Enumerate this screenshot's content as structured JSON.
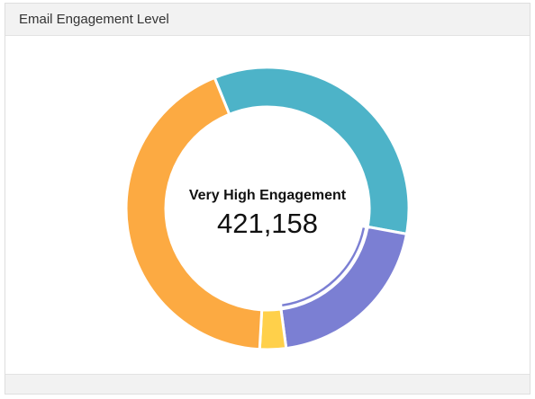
{
  "panel": {
    "title": "Email Engagement Level"
  },
  "chart_data": {
    "type": "pie",
    "title": "Email Engagement Level",
    "center_label": "Very High Engagement",
    "center_value": "421,158",
    "series": [
      {
        "value": 34,
        "color": "#4db3c8"
      },
      {
        "value": 20,
        "color": "#7b7fd3"
      },
      {
        "value": 3,
        "color": "#ffd04a"
      },
      {
        "value": 43,
        "color": "#fcaa42"
      }
    ],
    "highlighted_index": 1
  }
}
